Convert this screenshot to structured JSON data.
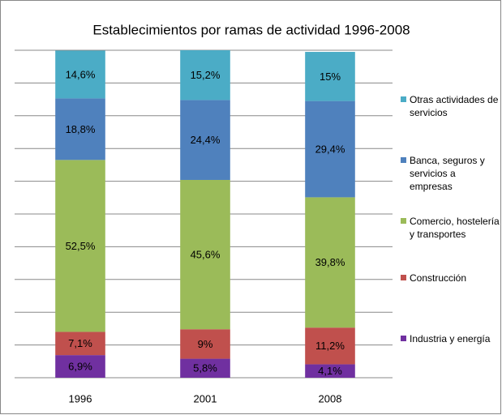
{
  "chart_data": {
    "type": "stacked_bar",
    "title": "Establecimientos por ramas de actividad 1996-2008",
    "categories": [
      "1996",
      "2001",
      "2008"
    ],
    "series": [
      {
        "name": "Industria y energía",
        "color": "#7030a0",
        "values": [
          6.9,
          5.8,
          4.1
        ],
        "value_labels": [
          "6,9%",
          "5,8%",
          "4,1%"
        ]
      },
      {
        "name": "Construcción",
        "color": "#c0504d",
        "values": [
          7.1,
          9,
          11.2
        ],
        "value_labels": [
          "7,1%",
          "9%",
          "11,2%"
        ]
      },
      {
        "name": "Comercio, hostelería y transportes",
        "color": "#9bbb59",
        "values": [
          52.5,
          45.6,
          39.8
        ],
        "value_labels": [
          "52,5%",
          "45,6%",
          "39,8%"
        ]
      },
      {
        "name": "Banca, seguros y servicios a empresas",
        "color": "#4f81bd",
        "values": [
          18.8,
          24.4,
          29.4
        ],
        "value_labels": [
          "18,8%",
          "24,4%",
          "29,4%"
        ]
      },
      {
        "name": "Otras actividades de servicios",
        "color": "#4bacc6",
        "values": [
          14.6,
          15.2,
          15
        ],
        "value_labels": [
          "14,6%",
          "15,2%",
          "15%"
        ]
      }
    ],
    "ylim": [
      0,
      100
    ],
    "yticks": [
      0,
      10,
      20,
      30,
      40,
      50,
      60,
      70,
      80,
      90,
      100
    ],
    "grid": true,
    "legend": "right"
  }
}
